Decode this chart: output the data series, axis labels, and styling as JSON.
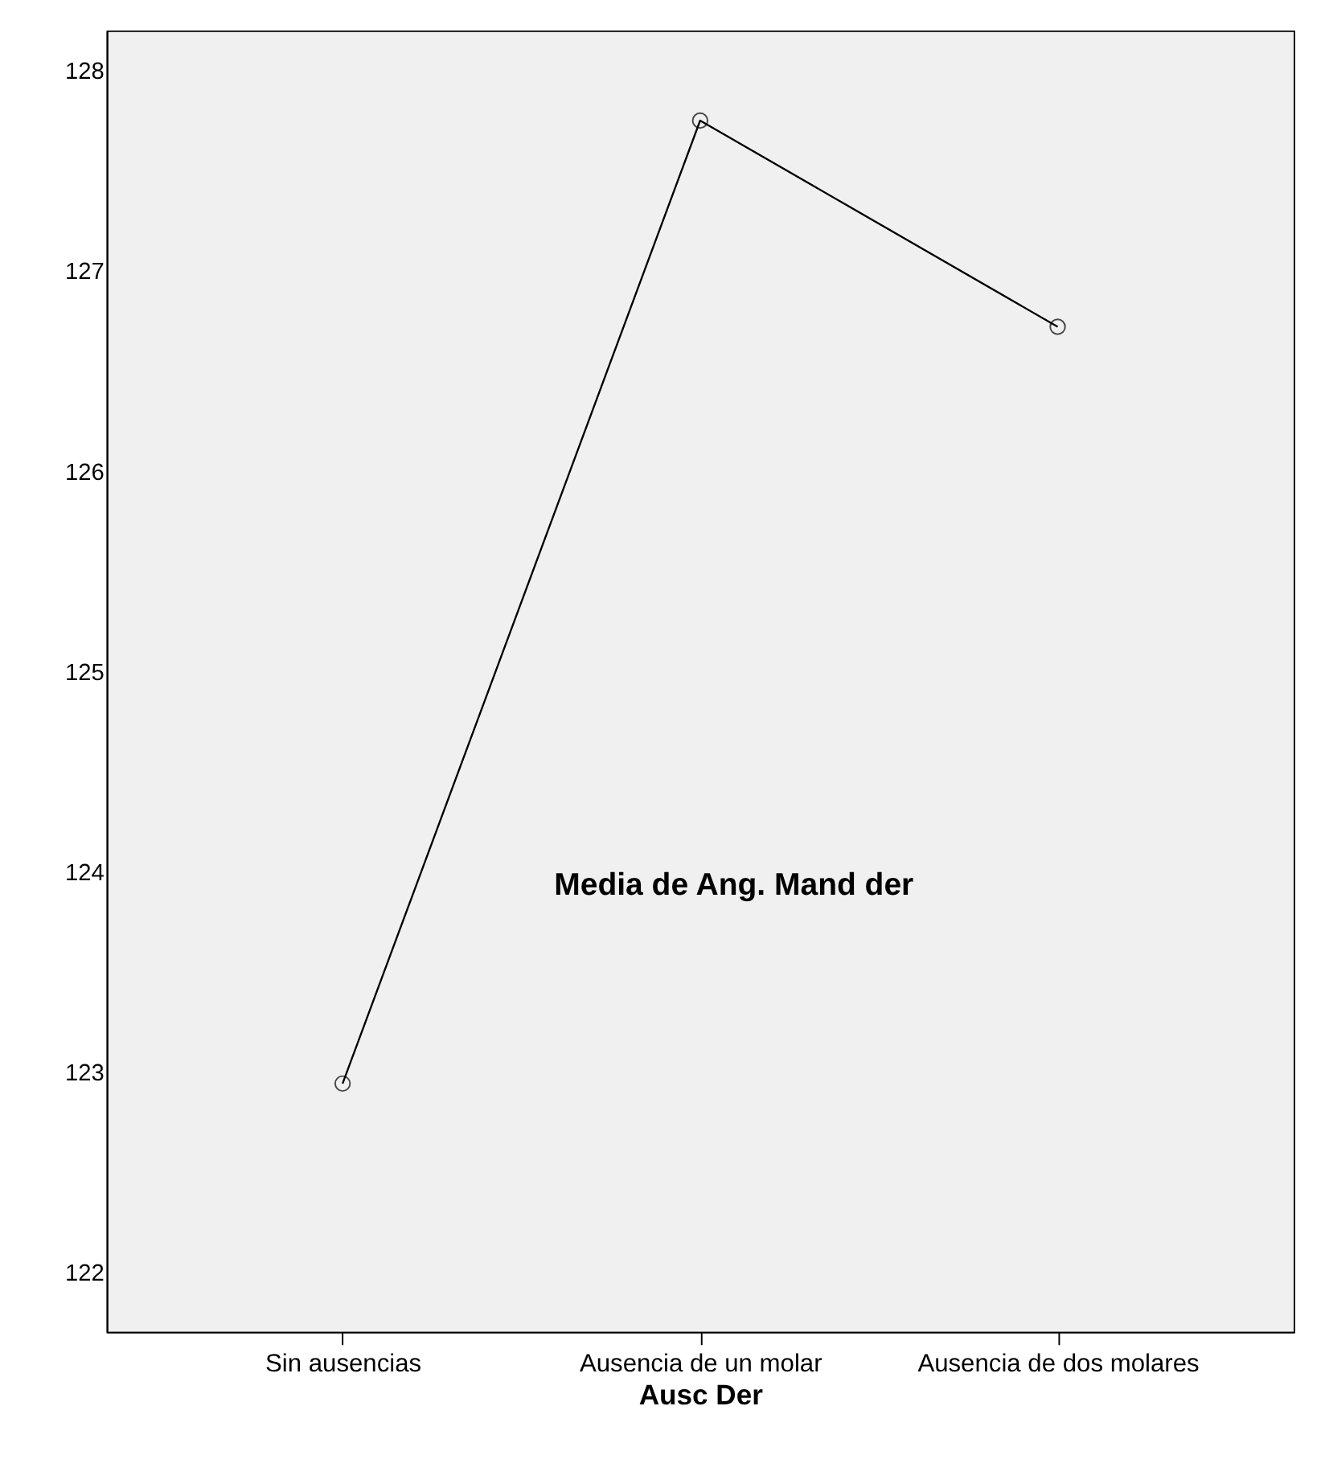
{
  "chart_data": {
    "type": "line",
    "xlabel": "Ausc Der",
    "ylabel": "Media de Ang. Mand der",
    "categories": [
      "Sin ausencias",
      "Ausencia de un molar",
      "Ausencia de dos molares"
    ],
    "series": [
      {
        "color": "#000000",
        "values": [
          122.94,
          127.75,
          126.72
        ]
      }
    ],
    "ylim": [
      121.7,
      128.2
    ],
    "yticks": [
      122,
      123,
      124,
      125,
      126,
      127,
      128
    ],
    "grid": false,
    "marker": "circle",
    "legend": false
  }
}
